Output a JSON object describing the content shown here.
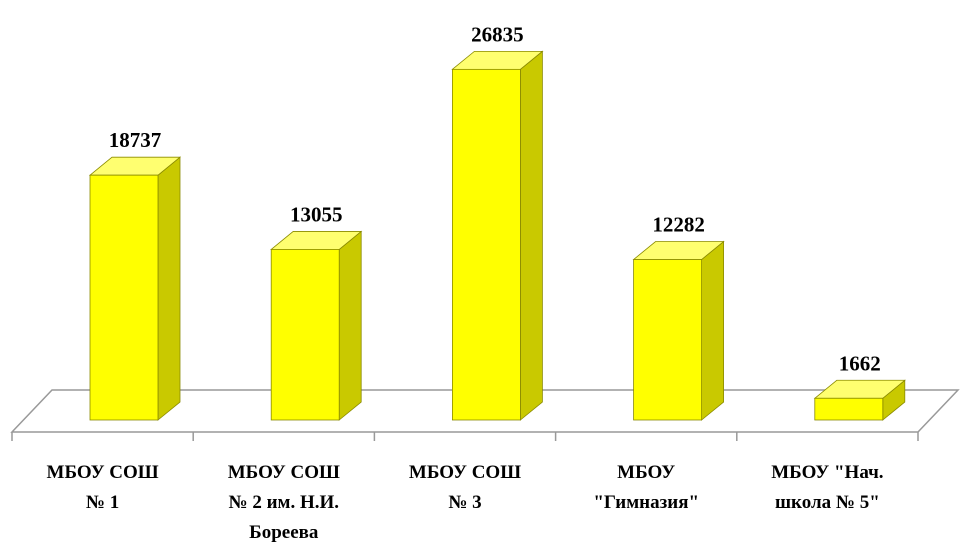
{
  "chart_data": {
    "type": "bar3d",
    "categories": [
      [
        "МБОУ СОШ",
        "№ 1"
      ],
      [
        "МБОУ СОШ",
        "№ 2 им. Н.И.",
        "Бореева"
      ],
      [
        "МБОУ СОШ",
        "№ 3"
      ],
      [
        "МБОУ",
        "\"Гимназия\""
      ],
      [
        "МБОУ \"Нач.",
        "школа № 5\""
      ]
    ],
    "values": [
      18737,
      13055,
      26835,
      12282,
      1662
    ],
    "color": "#ffff00",
    "ylim": [
      0,
      30000
    ]
  }
}
